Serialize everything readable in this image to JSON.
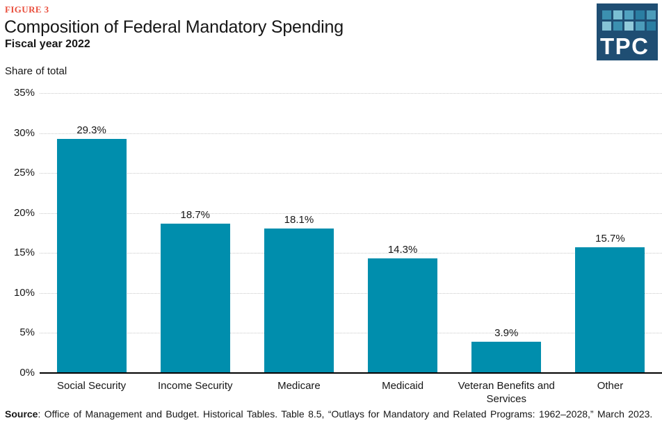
{
  "header": {
    "figure_label": "FIGURE 3",
    "title": "Composition of Federal Mandatory Spending",
    "subtitle": "Fiscal year 2022"
  },
  "logo": {
    "text": "TPC",
    "background": "#1f4e73",
    "square_colors": [
      "#3c90b0",
      "#7bbfd3",
      "#51a2c0",
      "#2a7ea2",
      "#4c9cba",
      "#85c3d6",
      "#3c90b0",
      "#92cbdb",
      "#4c9cba",
      "#2a7ea2"
    ]
  },
  "chart_data": {
    "type": "bar",
    "title": "Composition of Federal Mandatory Spending",
    "subtitle": "Fiscal year 2022",
    "ylabel": "Share of total",
    "categories": [
      "Social Security",
      "Income Security",
      "Medicare",
      "Medicaid",
      "Veteran Benefits and Services",
      "Other"
    ],
    "values": [
      29.3,
      18.7,
      18.1,
      14.3,
      3.9,
      15.7
    ],
    "value_labels": [
      "29.3%",
      "18.7%",
      "18.1%",
      "14.3%",
      "3.9%",
      "15.7%"
    ],
    "ylim": [
      0,
      35
    ],
    "ytick_interval": 5,
    "ytick_labels": [
      "0%",
      "5%",
      "10%",
      "15%",
      "20%",
      "25%",
      "30%",
      "35%"
    ],
    "grid": "horizontal-dotted",
    "legend": "none",
    "bar_color": "#008ead"
  },
  "source": {
    "label": "Source",
    "text": ": Office of Management and Budget. Historical Tables. Table 8.5, “Outlays for Mandatory and Related Programs: 1962–2028,” March 2023."
  }
}
